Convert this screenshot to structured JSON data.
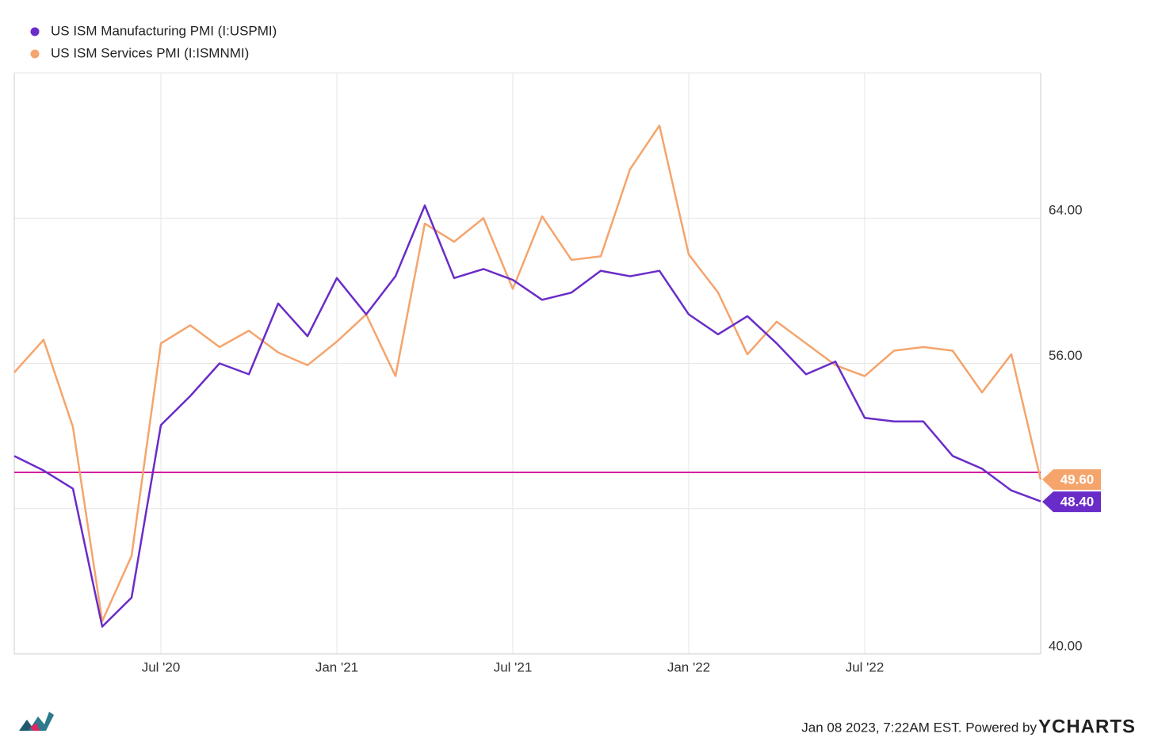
{
  "chart_data": {
    "type": "line",
    "x": [
      "2020-01",
      "2020-02",
      "2020-03",
      "2020-04",
      "2020-05",
      "2020-06",
      "2020-07",
      "2020-08",
      "2020-09",
      "2020-10",
      "2020-11",
      "2020-12",
      "2021-01",
      "2021-02",
      "2021-03",
      "2021-04",
      "2021-05",
      "2021-06",
      "2021-07",
      "2021-08",
      "2021-09",
      "2021-10",
      "2021-11",
      "2021-12",
      "2022-01",
      "2022-02",
      "2022-03",
      "2022-04",
      "2022-05",
      "2022-06",
      "2022-07",
      "2022-08",
      "2022-09",
      "2022-10",
      "2022-11",
      "2022-12"
    ],
    "series": [
      {
        "name": "US ISM Manufacturing PMI (I:USPMI)",
        "color": "#6a2cc8",
        "values": [
          50.9,
          50.1,
          49.1,
          41.5,
          43.1,
          52.6,
          54.2,
          56.0,
          55.4,
          59.3,
          57.5,
          60.7,
          58.7,
          60.8,
          64.7,
          60.7,
          61.2,
          60.6,
          59.5,
          59.9,
          61.1,
          60.8,
          61.1,
          58.7,
          57.6,
          58.6,
          57.1,
          55.4,
          56.1,
          53.0,
          52.8,
          52.8,
          50.9,
          50.2,
          49.0,
          48.4
        ],
        "value_labels": [
          null,
          null,
          null,
          null,
          null,
          null,
          null,
          null,
          null,
          null,
          null,
          null,
          null,
          null,
          null,
          null,
          null,
          null,
          null,
          null,
          null,
          null,
          null,
          null,
          null,
          null,
          null,
          null,
          null,
          null,
          null,
          null,
          null,
          null,
          null,
          "48.40"
        ]
      },
      {
        "name": "US ISM Services PMI (I:ISMNMI)",
        "color": "#f5a46c",
        "values": [
          55.5,
          57.3,
          52.5,
          41.8,
          45.4,
          57.1,
          58.1,
          56.9,
          57.8,
          56.6,
          55.9,
          57.2,
          58.7,
          55.3,
          63.7,
          62.7,
          64.0,
          60.1,
          64.1,
          61.7,
          61.9,
          66.7,
          69.1,
          62.0,
          59.9,
          56.5,
          58.3,
          57.1,
          55.9,
          55.3,
          56.7,
          56.9,
          56.7,
          54.4,
          56.5,
          49.6
        ],
        "value_labels": [
          null,
          null,
          null,
          null,
          null,
          null,
          null,
          null,
          null,
          null,
          null,
          null,
          null,
          null,
          null,
          null,
          null,
          null,
          null,
          null,
          null,
          null,
          null,
          null,
          null,
          null,
          null,
          null,
          null,
          null,
          null,
          null,
          null,
          null,
          null,
          "49.60"
        ]
      }
    ],
    "xlim": [
      "2020-01",
      "2022-12"
    ],
    "xticks": [
      {
        "value": "2020-07",
        "label": "Jul '20"
      },
      {
        "value": "2021-01",
        "label": "Jan '21"
      },
      {
        "value": "2021-07",
        "label": "Jul '21"
      },
      {
        "value": "2022-01",
        "label": "Jan '22"
      },
      {
        "value": "2022-07",
        "label": "Jul '22"
      }
    ],
    "ylim": [
      40,
      72
    ],
    "yticks": [
      {
        "value": 40,
        "label": "40.00"
      },
      {
        "value": 48,
        "label": null
      },
      {
        "value": 56,
        "label": "56.00"
      },
      {
        "value": 64,
        "label": "64.00"
      },
      {
        "value": 72,
        "label": null
      }
    ],
    "grid": true,
    "reference_line": {
      "value": 50,
      "color": "#d4209c"
    },
    "footer": "Jan 08 2023, 7:22AM EST. Powered by",
    "brand": "YCHARTS"
  }
}
